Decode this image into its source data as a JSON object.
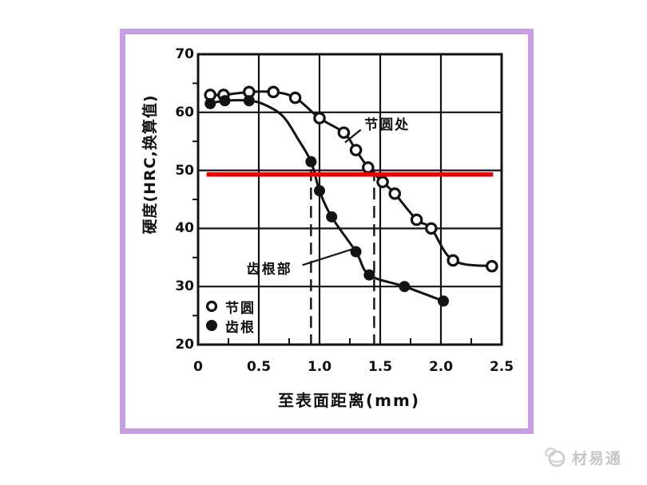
{
  "frame": {
    "border_color": "#c79ee3",
    "background": "#ffffff"
  },
  "watermark": {
    "text": "材易通",
    "logo": "globe-leaf-logo",
    "color": "#c6c6c6"
  },
  "chart_data": {
    "type": "line",
    "title": "",
    "xlabel": "至表面距离(mm)",
    "ylabel": "硬度(HRC,换算值)",
    "xlim": [
      0,
      2.5
    ],
    "ylim": [
      20,
      70
    ],
    "grid": true,
    "x_ticks": [
      "0",
      "0.5",
      "1.0",
      "1.5",
      "2.0",
      "2.5"
    ],
    "y_ticks": [
      "20",
      "30",
      "40",
      "50",
      "60",
      "70"
    ],
    "x_minor_ticks": [
      0.25,
      0.75,
      1.25,
      1.75,
      2.25
    ],
    "y_minor_ticks": [
      25,
      35,
      45,
      55,
      65
    ],
    "legend_position": "lower-left-inside",
    "series": [
      {
        "name": "节圆",
        "marker": "open-circle",
        "x": [
          0.1,
          0.21,
          0.42,
          0.62,
          0.8,
          1.0,
          1.2,
          1.3,
          1.4,
          1.52,
          1.62,
          1.8,
          1.92,
          2.1,
          2.42
        ],
        "y": [
          63,
          63,
          63.5,
          63.5,
          62.5,
          59,
          56.5,
          53.5,
          50.5,
          48,
          46,
          41.5,
          40,
          34.5,
          33.5
        ]
      },
      {
        "name": "齿根",
        "marker": "filled-circle",
        "x": [
          0.1,
          0.22,
          0.42,
          0.93,
          1.0,
          1.1,
          1.3,
          1.41,
          1.7,
          2.02
        ],
        "y": [
          61.5,
          62,
          62,
          51.5,
          46.5,
          42,
          36,
          32,
          30,
          27.5
        ],
        "line_shape_x": [
          0.1,
          0.22,
          0.42,
          0.55,
          0.7,
          0.82,
          0.93,
          1.0,
          1.1,
          1.3,
          1.41,
          1.7,
          2.02
        ],
        "line_shape_y": [
          61.5,
          62,
          62,
          61.3,
          59.3,
          55.5,
          51.5,
          46.5,
          42,
          36,
          32,
          30,
          27.5
        ]
      }
    ],
    "annotations": [
      {
        "text": "节圆处",
        "x": 1.37,
        "y": 58.3,
        "leader": [
          [
            1.34,
            57.0
          ],
          [
            1.21,
            54.8
          ]
        ]
      },
      {
        "text": "齿根部",
        "x": 0.4,
        "y": 33.5,
        "leader": [
          [
            0.86,
            33.7
          ],
          [
            1.28,
            36.5
          ]
        ]
      }
    ],
    "reference_line": {
      "y": 49.3,
      "x_from": 0.07,
      "x_to": 2.43,
      "color": "#e60000"
    },
    "dashed_vlines": [
      {
        "x": 0.93,
        "y_from": 20,
        "y_to": 50.2
      },
      {
        "x": 1.45,
        "y_from": 20,
        "y_to": 50.2
      }
    ],
    "legend": {
      "items": [
        {
          "marker": "open-circle",
          "label": "节圆"
        },
        {
          "marker": "filled-circle",
          "label": "齿根"
        }
      ]
    }
  }
}
